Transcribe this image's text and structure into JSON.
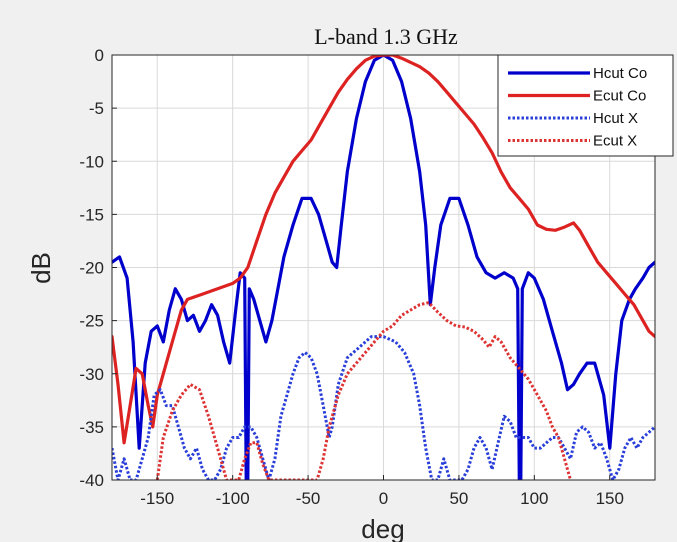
{
  "chart_data": {
    "type": "line",
    "title": "L-band 1.3 GHz",
    "xlabel": "deg",
    "ylabel": "dB",
    "xlim": [
      -180,
      180
    ],
    "ylim": [
      -40,
      0
    ],
    "xticks": [
      -150,
      -100,
      -50,
      0,
      50,
      100,
      150
    ],
    "yticks": [
      0,
      -5,
      -10,
      -15,
      -20,
      -25,
      -30,
      -35,
      -40
    ],
    "grid": true,
    "legend_position": "top-right",
    "series": [
      {
        "name": "Hcut Co",
        "color": "#0000cc",
        "style": "solid",
        "points": [
          [
            -180,
            -19.5
          ],
          [
            -175,
            -19
          ],
          [
            -170,
            -21
          ],
          [
            -166,
            -27
          ],
          [
            -162,
            -37
          ],
          [
            -158,
            -29
          ],
          [
            -154,
            -26
          ],
          [
            -150,
            -25.5
          ],
          [
            -146,
            -27
          ],
          [
            -142,
            -24
          ],
          [
            -138,
            -22
          ],
          [
            -134,
            -23
          ],
          [
            -130,
            -25
          ],
          [
            -126,
            -24.5
          ],
          [
            -122,
            -26
          ],
          [
            -118,
            -25
          ],
          [
            -114,
            -23.5
          ],
          [
            -110,
            -24.5
          ],
          [
            -106,
            -27
          ],
          [
            -102,
            -29
          ],
          [
            -98,
            -24
          ],
          [
            -95,
            -20.5
          ],
          [
            -92,
            -21
          ],
          [
            -91,
            -40
          ],
          [
            -90,
            -40
          ],
          [
            -89,
            -22
          ],
          [
            -86,
            -23
          ],
          [
            -82,
            -25
          ],
          [
            -78,
            -27
          ],
          [
            -74,
            -25
          ],
          [
            -70,
            -22
          ],
          [
            -66,
            -19
          ],
          [
            -60,
            -16
          ],
          [
            -54,
            -13.5
          ],
          [
            -48,
            -13.5
          ],
          [
            -43,
            -15
          ],
          [
            -38,
            -17.5
          ],
          [
            -34,
            -19.5
          ],
          [
            -31,
            -20
          ],
          [
            -28,
            -16
          ],
          [
            -24,
            -11
          ],
          [
            -18,
            -6
          ],
          [
            -12,
            -2.5
          ],
          [
            -6,
            -0.5
          ],
          [
            0,
            0
          ],
          [
            6,
            -0.5
          ],
          [
            12,
            -2.5
          ],
          [
            18,
            -6
          ],
          [
            24,
            -11
          ],
          [
            28,
            -16
          ],
          [
            31,
            -23.5
          ],
          [
            34,
            -20
          ],
          [
            38,
            -16
          ],
          [
            44,
            -13.5
          ],
          [
            50,
            -13.5
          ],
          [
            56,
            -16
          ],
          [
            62,
            -19
          ],
          [
            68,
            -20.5
          ],
          [
            74,
            -21
          ],
          [
            80,
            -20.5
          ],
          [
            86,
            -21
          ],
          [
            89,
            -22
          ],
          [
            90,
            -40
          ],
          [
            91,
            -40
          ],
          [
            92,
            -22
          ],
          [
            96,
            -20.5
          ],
          [
            100,
            -21
          ],
          [
            106,
            -23
          ],
          [
            112,
            -26
          ],
          [
            118,
            -29
          ],
          [
            122,
            -31.5
          ],
          [
            126,
            -31
          ],
          [
            130,
            -30
          ],
          [
            135,
            -29
          ],
          [
            140,
            -29
          ],
          [
            146,
            -32
          ],
          [
            150,
            -37
          ],
          [
            154,
            -30
          ],
          [
            158,
            -25
          ],
          [
            163,
            -23
          ],
          [
            167,
            -22
          ],
          [
            172,
            -21
          ],
          [
            176,
            -20
          ],
          [
            180,
            -19.5
          ]
        ]
      },
      {
        "name": "Ecut Co",
        "color": "#dd2222",
        "style": "solid",
        "points": [
          [
            -180,
            -26.5
          ],
          [
            -176,
            -31
          ],
          [
            -172,
            -36.5
          ],
          [
            -168,
            -33
          ],
          [
            -164,
            -29.5
          ],
          [
            -160,
            -30
          ],
          [
            -156,
            -33
          ],
          [
            -153,
            -35
          ],
          [
            -150,
            -32
          ],
          [
            -146,
            -30
          ],
          [
            -142,
            -28
          ],
          [
            -138,
            -26
          ],
          [
            -134,
            -24
          ],
          [
            -130,
            -23
          ],
          [
            -120,
            -22.5
          ],
          [
            -110,
            -22
          ],
          [
            -100,
            -21.5
          ],
          [
            -95,
            -21
          ],
          [
            -90,
            -20
          ],
          [
            -84,
            -17.5
          ],
          [
            -78,
            -15
          ],
          [
            -72,
            -13
          ],
          [
            -66,
            -11.5
          ],
          [
            -60,
            -10
          ],
          [
            -54,
            -9
          ],
          [
            -48,
            -8
          ],
          [
            -42,
            -6.5
          ],
          [
            -36,
            -5
          ],
          [
            -30,
            -3.5
          ],
          [
            -24,
            -2.3
          ],
          [
            -18,
            -1.3
          ],
          [
            -12,
            -0.5
          ],
          [
            -6,
            -0.1
          ],
          [
            0,
            0
          ],
          [
            6,
            0
          ],
          [
            12,
            -0.3
          ],
          [
            18,
            -0.7
          ],
          [
            24,
            -1.1
          ],
          [
            30,
            -1.7
          ],
          [
            36,
            -2.5
          ],
          [
            42,
            -3.5
          ],
          [
            48,
            -4.5
          ],
          [
            54,
            -5.5
          ],
          [
            60,
            -6.5
          ],
          [
            66,
            -7.8
          ],
          [
            72,
            -9.2
          ],
          [
            78,
            -11
          ],
          [
            84,
            -12.5
          ],
          [
            90,
            -13.5
          ],
          [
            96,
            -14.5
          ],
          [
            102,
            -16
          ],
          [
            108,
            -16.4
          ],
          [
            114,
            -16.5
          ],
          [
            120,
            -16.2
          ],
          [
            126,
            -15.8
          ],
          [
            130,
            -16.5
          ],
          [
            136,
            -18
          ],
          [
            142,
            -19.5
          ],
          [
            148,
            -20.5
          ],
          [
            154,
            -21.5
          ],
          [
            160,
            -22.5
          ],
          [
            166,
            -23.5
          ],
          [
            172,
            -25
          ],
          [
            176,
            -26
          ],
          [
            180,
            -26.5
          ]
        ]
      },
      {
        "name": "Hcut X",
        "color": "#2a3fd9",
        "style": "dotted",
        "points": [
          [
            -180,
            -37
          ],
          [
            -176,
            -40
          ],
          [
            -172,
            -38
          ],
          [
            -168,
            -40
          ],
          [
            -164,
            -40
          ],
          [
            -160,
            -38
          ],
          [
            -156,
            -36
          ],
          [
            -152,
            -32
          ],
          [
            -148,
            -31.5
          ],
          [
            -144,
            -33
          ],
          [
            -140,
            -33
          ],
          [
            -136,
            -35
          ],
          [
            -132,
            -37
          ],
          [
            -128,
            -38
          ],
          [
            -124,
            -37
          ],
          [
            -120,
            -39
          ],
          [
            -116,
            -40
          ],
          [
            -112,
            -40
          ],
          [
            -108,
            -39
          ],
          [
            -104,
            -37
          ],
          [
            -100,
            -36
          ],
          [
            -96,
            -36
          ],
          [
            -92,
            -35
          ],
          [
            -88,
            -35
          ],
          [
            -84,
            -36
          ],
          [
            -80,
            -38
          ],
          [
            -76,
            -40
          ],
          [
            -72,
            -38
          ],
          [
            -68,
            -34
          ],
          [
            -64,
            -32
          ],
          [
            -60,
            -30
          ],
          [
            -56,
            -28.5
          ],
          [
            -52,
            -28
          ],
          [
            -48,
            -28.5
          ],
          [
            -44,
            -30
          ],
          [
            -40,
            -33
          ],
          [
            -36,
            -36
          ],
          [
            -34,
            -35
          ],
          [
            -30,
            -31
          ],
          [
            -24,
            -28.5
          ],
          [
            -16,
            -27.5
          ],
          [
            -8,
            -26.5
          ],
          [
            0,
            -26.5
          ],
          [
            8,
            -27
          ],
          [
            14,
            -28
          ],
          [
            20,
            -30
          ],
          [
            24,
            -33
          ],
          [
            28,
            -37
          ],
          [
            32,
            -40
          ],
          [
            36,
            -40
          ],
          [
            40,
            -38
          ],
          [
            44,
            -40
          ],
          [
            48,
            -40
          ],
          [
            52,
            -40
          ],
          [
            56,
            -39
          ],
          [
            60,
            -37
          ],
          [
            64,
            -36
          ],
          [
            68,
            -37
          ],
          [
            72,
            -39
          ],
          [
            76,
            -36.5
          ],
          [
            80,
            -34
          ],
          [
            84,
            -34.5
          ],
          [
            88,
            -36
          ],
          [
            92,
            -36
          ],
          [
            96,
            -36
          ],
          [
            100,
            -37
          ],
          [
            104,
            -37
          ],
          [
            108,
            -36.5
          ],
          [
            112,
            -36
          ],
          [
            116,
            -36
          ],
          [
            120,
            -37
          ],
          [
            124,
            -38
          ],
          [
            128,
            -35.5
          ],
          [
            132,
            -35
          ],
          [
            136,
            -35.5
          ],
          [
            140,
            -37
          ],
          [
            144,
            -36.5
          ],
          [
            148,
            -38
          ],
          [
            152,
            -40
          ],
          [
            156,
            -39
          ],
          [
            160,
            -37
          ],
          [
            164,
            -36
          ],
          [
            168,
            -37
          ],
          [
            172,
            -36
          ],
          [
            176,
            -35.5
          ],
          [
            180,
            -35
          ]
        ]
      },
      {
        "name": "Ecut X",
        "color": "#dd3333",
        "style": "dotted",
        "points": [
          [
            -150,
            -40
          ],
          [
            -146,
            -36
          ],
          [
            -140,
            -33.5
          ],
          [
            -134,
            -32
          ],
          [
            -128,
            -31
          ],
          [
            -122,
            -31.5
          ],
          [
            -116,
            -34
          ],
          [
            -110,
            -37
          ],
          [
            -106,
            -39
          ],
          [
            -104,
            -40
          ],
          [
            -96,
            -40
          ],
          [
            -92,
            -38
          ],
          [
            -88,
            -36.5
          ],
          [
            -84,
            -36.5
          ],
          [
            -80,
            -38.5
          ],
          [
            -76,
            -40
          ],
          [
            -44,
            -40
          ],
          [
            -40,
            -38
          ],
          [
            -36,
            -35
          ],
          [
            -30,
            -32
          ],
          [
            -24,
            -30
          ],
          [
            -18,
            -29
          ],
          [
            -12,
            -28
          ],
          [
            -6,
            -27
          ],
          [
            0,
            -26
          ],
          [
            6,
            -25.5
          ],
          [
            12,
            -24.5
          ],
          [
            18,
            -24
          ],
          [
            24,
            -23.5
          ],
          [
            30,
            -23.3
          ],
          [
            36,
            -24.2
          ],
          [
            42,
            -25
          ],
          [
            48,
            -25.5
          ],
          [
            54,
            -25.6
          ],
          [
            60,
            -26
          ],
          [
            66,
            -26.8
          ],
          [
            70,
            -27.5
          ],
          [
            74,
            -26.5
          ],
          [
            78,
            -27
          ],
          [
            84,
            -28.5
          ],
          [
            90,
            -29.5
          ],
          [
            96,
            -30.5
          ],
          [
            102,
            -32
          ],
          [
            108,
            -33.5
          ],
          [
            112,
            -35
          ],
          [
            116,
            -36
          ],
          [
            120,
            -38
          ],
          [
            124,
            -40
          ]
        ]
      }
    ]
  }
}
